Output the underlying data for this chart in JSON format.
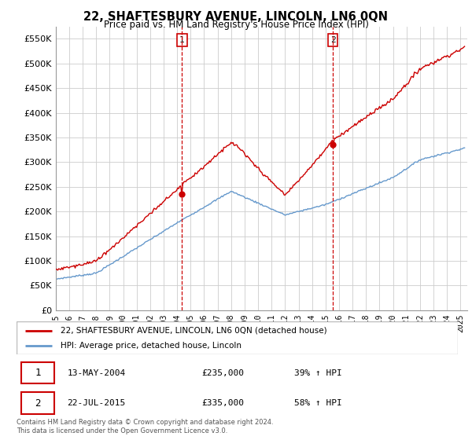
{
  "title": "22, SHAFTESBURY AVENUE, LINCOLN, LN6 0QN",
  "subtitle": "Price paid vs. HM Land Registry's House Price Index (HPI)",
  "ylabel_ticks": [
    "£0",
    "£50K",
    "£100K",
    "£150K",
    "£200K",
    "£250K",
    "£300K",
    "£350K",
    "£400K",
    "£450K",
    "£500K",
    "£550K"
  ],
  "ytick_values": [
    0,
    50000,
    100000,
    150000,
    200000,
    250000,
    300000,
    350000,
    400000,
    450000,
    500000,
    550000
  ],
  "ylim": [
    0,
    575000
  ],
  "xlim_start": 1995.0,
  "xlim_end": 2025.5,
  "purchase1_x": 2004.36,
  "purchase1_y": 235000,
  "purchase2_x": 2015.55,
  "purchase2_y": 335000,
  "red_line_color": "#cc0000",
  "blue_line_color": "#6699cc",
  "grid_color": "#cccccc",
  "bg_color": "#ffffff",
  "legend_entry1": "22, SHAFTESBURY AVENUE, LINCOLN, LN6 0QN (detached house)",
  "legend_entry2": "HPI: Average price, detached house, Lincoln",
  "purchase1_label": "1",
  "purchase1_date": "13-MAY-2004",
  "purchase1_price": "£235,000",
  "purchase1_hpi": "39% ↑ HPI",
  "purchase2_label": "2",
  "purchase2_date": "22-JUL-2015",
  "purchase2_price": "£335,000",
  "purchase2_hpi": "58% ↑ HPI",
  "footer_line1": "Contains HM Land Registry data © Crown copyright and database right 2024.",
  "footer_line2": "This data is licensed under the Open Government Licence v3.0.",
  "xtick_years": [
    1995,
    1996,
    1997,
    1998,
    1999,
    2000,
    2001,
    2002,
    2003,
    2004,
    2005,
    2006,
    2007,
    2008,
    2009,
    2010,
    2011,
    2012,
    2013,
    2014,
    2015,
    2016,
    2017,
    2018,
    2019,
    2020,
    2021,
    2022,
    2023,
    2024,
    2025
  ]
}
